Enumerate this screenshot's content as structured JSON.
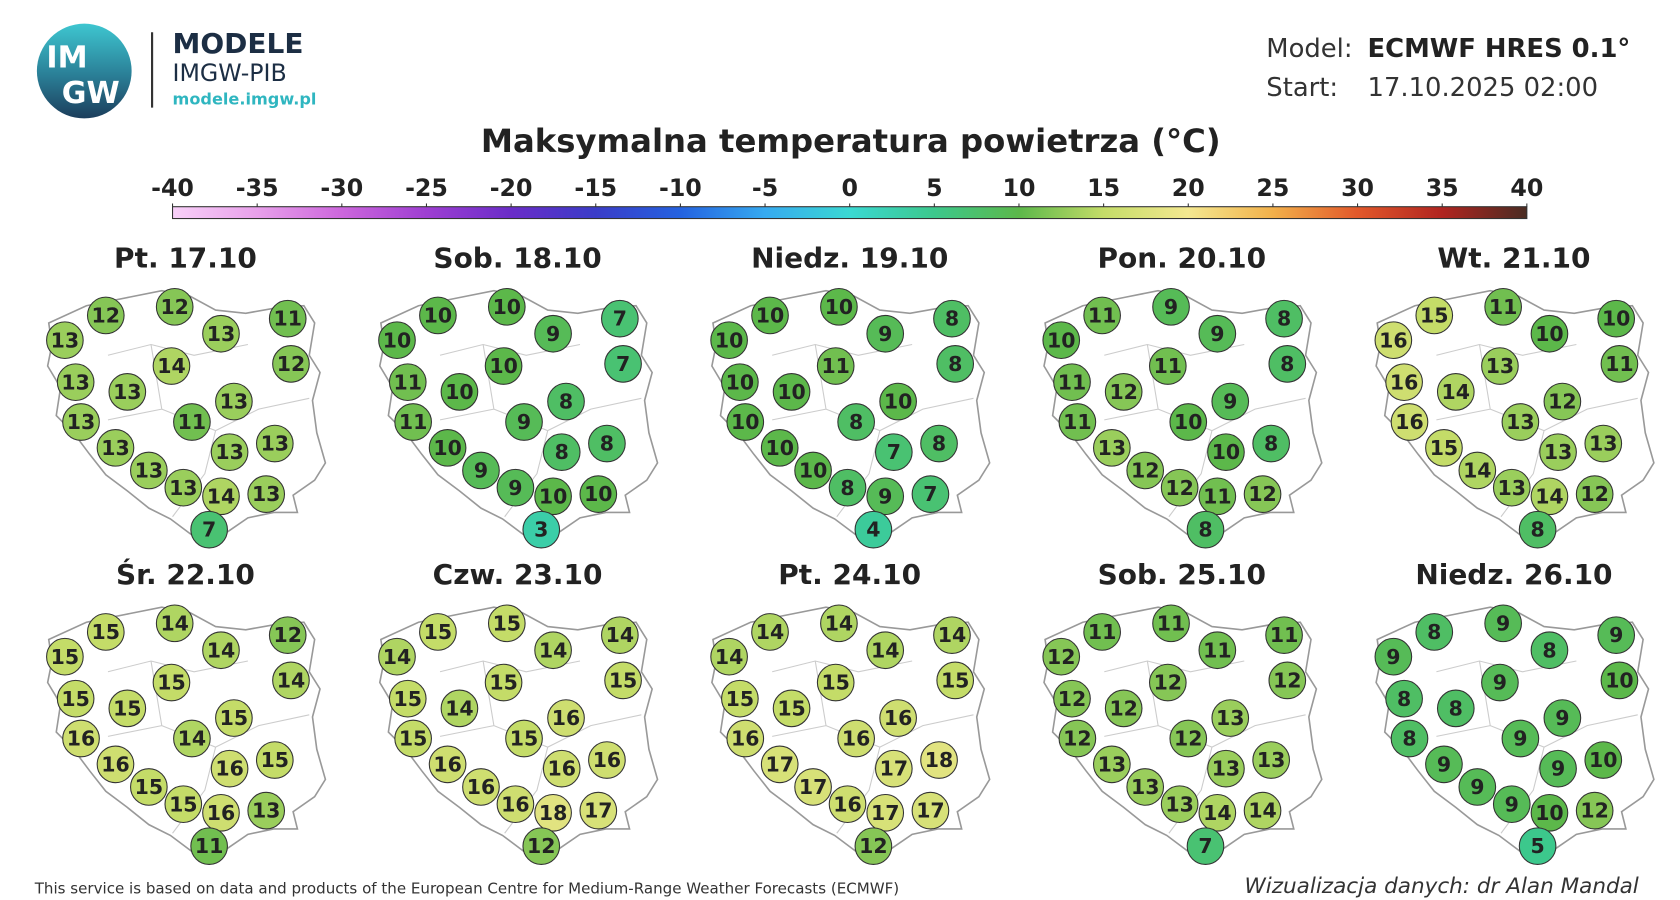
{
  "header": {
    "logo_lines": [
      "IM",
      "GW"
    ],
    "brand": "MODELE",
    "org": "IMGW-PIB",
    "url": "modele.imgw.pl",
    "model_label": "Model:",
    "model": "ECMWF HRES 0.1°",
    "start_label": "Start:",
    "start": "17.10.2025 02:00"
  },
  "title": "Maksymalna temperatura powietrza (°C)",
  "colorbar": {
    "ticks": [
      -40,
      -35,
      -30,
      -25,
      -20,
      -15,
      -10,
      -5,
      0,
      5,
      10,
      15,
      20,
      25,
      30,
      35,
      40
    ],
    "colors": [
      "#f8d0f8",
      "#e8a0ea",
      "#cc66dc",
      "#9e3ed2",
      "#6a2cc8",
      "#3a3cc8",
      "#2462e0",
      "#36aaf0",
      "#3ad8d2",
      "#3cc88c",
      "#5cb84a",
      "#c4dc68",
      "#f4e890",
      "#f2b04a",
      "#e2582a",
      "#b02420",
      "#4a2c22"
    ]
  },
  "days": [
    {
      "label": "Pt. 17.10",
      "values": [
        13,
        12,
        12,
        13,
        11,
        12,
        13,
        13,
        14,
        13,
        13,
        11,
        13,
        13,
        13,
        13,
        13,
        14,
        13,
        7
      ]
    },
    {
      "label": "Sob. 18.10",
      "values": [
        10,
        10,
        10,
        9,
        7,
        7,
        11,
        10,
        10,
        8,
        11,
        9,
        10,
        8,
        8,
        9,
        9,
        10,
        10,
        3
      ]
    },
    {
      "label": "Niedz. 19.10",
      "values": [
        10,
        10,
        10,
        9,
        8,
        8,
        10,
        10,
        11,
        10,
        10,
        8,
        10,
        7,
        8,
        10,
        8,
        9,
        7,
        4
      ]
    },
    {
      "label": "Pon. 20.10",
      "values": [
        10,
        11,
        9,
        9,
        8,
        8,
        11,
        12,
        11,
        9,
        11,
        10,
        13,
        10,
        8,
        12,
        12,
        11,
        12,
        8
      ]
    },
    {
      "label": "Wt. 21.10",
      "values": [
        16,
        15,
        11,
        10,
        10,
        11,
        16,
        14,
        13,
        12,
        16,
        13,
        15,
        13,
        13,
        14,
        13,
        14,
        12,
        8
      ]
    },
    {
      "label": "Śr. 22.10",
      "values": [
        15,
        15,
        14,
        14,
        12,
        14,
        15,
        15,
        15,
        15,
        16,
        14,
        16,
        16,
        15,
        15,
        15,
        16,
        13,
        11
      ]
    },
    {
      "label": "Czw. 23.10",
      "values": [
        14,
        15,
        15,
        14,
        14,
        15,
        15,
        14,
        15,
        16,
        15,
        15,
        16,
        16,
        16,
        16,
        16,
        18,
        17,
        12
      ]
    },
    {
      "label": "Pt. 24.10",
      "values": [
        14,
        14,
        14,
        14,
        14,
        15,
        15,
        15,
        15,
        16,
        16,
        16,
        17,
        17,
        18,
        17,
        16,
        17,
        17,
        12
      ]
    },
    {
      "label": "Sob. 25.10",
      "values": [
        12,
        11,
        11,
        11,
        11,
        12,
        12,
        12,
        12,
        13,
        12,
        12,
        13,
        13,
        13,
        13,
        13,
        14,
        14,
        7
      ]
    },
    {
      "label": "Niedz. 26.10",
      "values": [
        9,
        8,
        9,
        8,
        9,
        10,
        8,
        8,
        9,
        9,
        8,
        9,
        9,
        9,
        10,
        9,
        9,
        10,
        12,
        5
      ]
    }
  ],
  "footer": {
    "source": "This service is based on data and products of the European Centre for Medium-Range Weather Forecasts (ECMWF)",
    "credit": "Wizualizacja danych: dr Alan Mandal"
  }
}
